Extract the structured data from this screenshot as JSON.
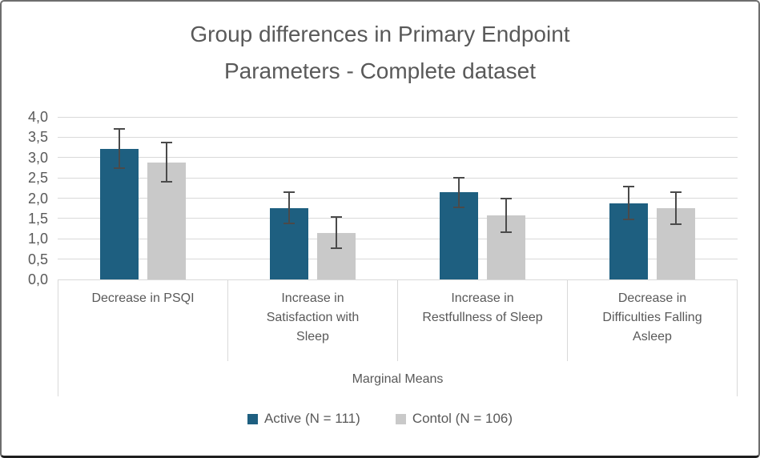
{
  "chart_data": {
    "type": "bar",
    "title": "Group differences in Primary Endpoint Parameters - Complete dataset",
    "xlabel": "Marginal Means",
    "ylabel": "",
    "ylim": [
      0,
      4
    ],
    "ytick_step": 0.5,
    "ytick_labels": [
      "0,0",
      "0,5",
      "1,0",
      "1,5",
      "2,0",
      "2,5",
      "3,0",
      "3,5",
      "4,0"
    ],
    "decimal_separator": "comma",
    "grid": true,
    "legend_position": "bottom",
    "categories": [
      "Decrease in PSQI",
      "Increase in Satisfaction with Sleep",
      "Increase in Restfullness of Sleep",
      "Decrease in Difficulties Falling Asleep"
    ],
    "series": [
      {
        "name": "Active (N = 111)",
        "color": "#1E5F80",
        "values": [
          3.22,
          1.76,
          2.14,
          1.88
        ],
        "error_bars": [
          0.48,
          0.39,
          0.37,
          0.41
        ]
      },
      {
        "name": "Contol (N = 106)",
        "color": "#C9C9C9",
        "values": [
          2.88,
          1.15,
          1.58,
          1.75
        ],
        "error_bars": [
          0.48,
          0.38,
          0.41,
          0.4
        ]
      }
    ],
    "colors": {
      "gridline": "#D9D9D9",
      "error_bar": "#4A4A4A",
      "text": "#595959",
      "axis_frame": "#D9D9D9"
    }
  }
}
